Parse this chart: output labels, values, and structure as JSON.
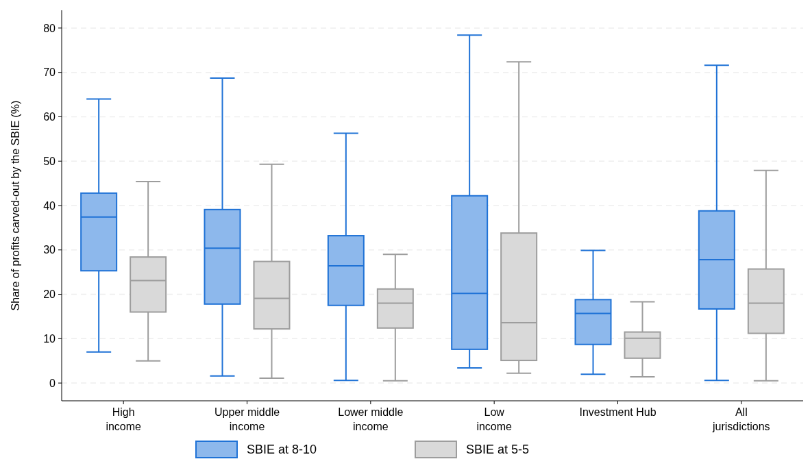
{
  "chart_data": {
    "type": "box",
    "ylabel": "Share of profits carved-out by the SBIE (%)",
    "categories": [
      "High\nincome",
      "Upper middle\nincome",
      "Lower middle\nincome",
      "Low\nincome",
      "Investment Hub",
      "All\njurisdictions"
    ],
    "ylim": [
      -4,
      84
    ],
    "yticks": [
      0,
      10,
      20,
      30,
      40,
      50,
      60,
      70,
      80
    ],
    "grid": "y",
    "legend": "bottom",
    "series": [
      {
        "name": "SBIE at 8-10",
        "color": "#8db8ec",
        "boxes": [
          {
            "low": 7.0,
            "q1": 25.3,
            "median": 37.4,
            "q3": 42.8,
            "high": 64.0
          },
          {
            "low": 1.6,
            "q1": 17.8,
            "median": 30.4,
            "q3": 39.1,
            "high": 68.7
          },
          {
            "low": 0.6,
            "q1": 17.5,
            "median": 26.4,
            "q3": 33.2,
            "high": 56.3
          },
          {
            "low": 3.4,
            "q1": 7.6,
            "median": 20.2,
            "q3": 42.2,
            "high": 78.4
          },
          {
            "low": 2.0,
            "q1": 8.7,
            "median": 15.7,
            "q3": 18.8,
            "high": 29.9
          },
          {
            "low": 0.6,
            "q1": 16.7,
            "median": 27.8,
            "q3": 38.8,
            "high": 71.6
          }
        ]
      },
      {
        "name": "SBIE at 5-5",
        "color": "#d9d9d9",
        "boxes": [
          {
            "low": 5.0,
            "q1": 16.0,
            "median": 23.1,
            "q3": 28.4,
            "high": 45.4
          },
          {
            "low": 1.1,
            "q1": 12.2,
            "median": 19.1,
            "q3": 27.4,
            "high": 49.3
          },
          {
            "low": 0.5,
            "q1": 12.4,
            "median": 18.0,
            "q3": 21.2,
            "high": 29.0
          },
          {
            "low": 2.2,
            "q1": 5.1,
            "median": 13.6,
            "q3": 33.8,
            "high": 72.4
          },
          {
            "low": 1.4,
            "q1": 5.6,
            "median": 10.1,
            "q3": 11.5,
            "high": 18.3
          },
          {
            "low": 0.5,
            "q1": 11.2,
            "median": 18.0,
            "q3": 25.7,
            "high": 47.9
          }
        ]
      }
    ]
  }
}
